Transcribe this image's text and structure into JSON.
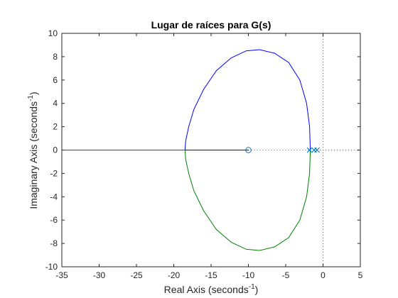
{
  "chart_data": {
    "type": "line",
    "title": "Lugar de raíces para G(s)",
    "xlabel": {
      "text": "Real Axis (seconds",
      "sup": "-1",
      "close": ")"
    },
    "ylabel": {
      "text": "Imaginary Axis (seconds",
      "sup": "-1",
      "close": ")"
    },
    "xlim": [
      -35,
      5
    ],
    "ylim": [
      -10,
      10
    ],
    "x_ticks": [
      -35,
      -30,
      -25,
      -20,
      -15,
      -10,
      -5,
      0,
      5
    ],
    "y_ticks": [
      -10,
      -8,
      -6,
      -4,
      -2,
      0,
      2,
      4,
      6,
      8,
      10
    ],
    "grid": false,
    "colors": {
      "blue_branch": "#0000ff",
      "green_branch": "#008000",
      "marker": "#0072bd",
      "axes": "#262626",
      "guide": "#555555"
    },
    "poles": [
      {
        "x": -1.8,
        "y": 0
      },
      {
        "x": -1.2,
        "y": 0
      },
      {
        "x": -0.8,
        "y": 0
      }
    ],
    "zeros": [
      {
        "x": -10,
        "y": 0
      }
    ],
    "series": [
      {
        "color_key": "blue_branch",
        "segments": [
          [
            [
              -1.7,
              0
            ],
            [
              -1.8,
              2
            ],
            [
              -2.2,
              4
            ],
            [
              -3.1,
              6
            ],
            [
              -4.6,
              7.5
            ],
            [
              -6.5,
              8.3
            ],
            [
              -8.5,
              8.6
            ],
            [
              -10.3,
              8.5
            ],
            [
              -12.3,
              7.9
            ],
            [
              -14.3,
              6.8
            ],
            [
              -16.0,
              5.2
            ],
            [
              -17.3,
              3.5
            ],
            [
              -18.0,
              2.0
            ],
            [
              -18.4,
              0.8
            ],
            [
              -18.5,
              0
            ]
          ],
          [
            [
              -18.5,
              0
            ],
            [
              -10,
              0
            ]
          ]
        ]
      },
      {
        "color_key": "green_branch",
        "segments": [
          [
            [
              -1.7,
              0
            ],
            [
              -1.8,
              -2
            ],
            [
              -2.2,
              -4
            ],
            [
              -3.1,
              -6
            ],
            [
              -4.6,
              -7.5
            ],
            [
              -6.5,
              -8.3
            ],
            [
              -8.5,
              -8.6
            ],
            [
              -10.3,
              -8.5
            ],
            [
              -12.3,
              -7.9
            ],
            [
              -14.3,
              -6.8
            ],
            [
              -16.0,
              -5.2
            ],
            [
              -17.3,
              -3.5
            ],
            [
              -18.0,
              -2.0
            ],
            [
              -18.4,
              -0.8
            ],
            [
              -18.5,
              0
            ]
          ],
          [
            [
              -18.5,
              0
            ],
            [
              -35,
              0
            ]
          ]
        ]
      }
    ],
    "dotted_segments": [
      [
        [
          -10,
          0
        ],
        [
          -1.8,
          0
        ]
      ],
      [
        [
          -0.8,
          0
        ],
        [
          5,
          0
        ]
      ],
      [
        [
          0,
          -10
        ],
        [
          0,
          10
        ]
      ]
    ]
  }
}
